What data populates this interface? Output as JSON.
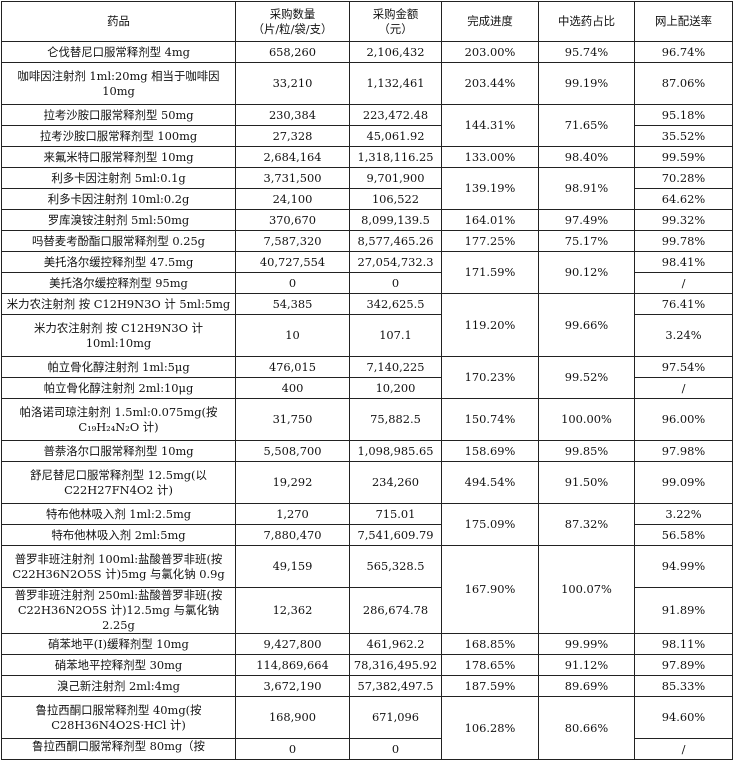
{
  "headers": {
    "drug": "药品",
    "qty": "采购数量",
    "qty_unit": "（片/粒/袋/支）",
    "amt": "采购金额",
    "amt_unit": "（元）",
    "progress": "完成进度",
    "share": "中选药占比",
    "online": "网上配送率"
  },
  "rows": [
    {
      "name": "仑伐替尼口服常释剂型 4mg",
      "qty": "658,260",
      "amt": "2,106,432",
      "progress": "203.00%",
      "share": "95.74%",
      "online": "96.74%"
    },
    {
      "name": "咖啡因注射剂 1ml:20mg 相当于咖啡因 10mg",
      "qty": "33,210",
      "amt": "1,132,461",
      "progress": "203.44%",
      "share": "99.19%",
      "online": "87.06%"
    },
    {
      "name": "拉考沙胺口服常释剂型 50mg",
      "qty": "230,384",
      "amt": "223,472.48",
      "progress": "144.31%",
      "share": "71.65%",
      "online": "95.18%"
    },
    {
      "name": "拉考沙胺口服常释剂型 100mg",
      "qty": "27,328",
      "amt": "45,061.92",
      "online": "35.52%"
    },
    {
      "name": "来氟米特口服常释剂型 10mg",
      "qty": "2,684,164",
      "amt": "1,318,116.25",
      "progress": "133.00%",
      "share": "98.40%",
      "online": "99.59%"
    },
    {
      "name": "利多卡因注射剂 5ml:0.1g",
      "qty": "3,731,500",
      "amt": "9,701,900",
      "progress": "139.19%",
      "share": "98.91%",
      "online": "70.28%"
    },
    {
      "name": "利多卡因注射剂 10ml:0.2g",
      "qty": "24,100",
      "amt": "106,522",
      "online": "64.62%"
    },
    {
      "name": "罗库溴铵注射剂 5ml:50mg",
      "qty": "370,670",
      "amt": "8,099,139.5",
      "progress": "164.01%",
      "share": "97.49%",
      "online": "99.32%"
    },
    {
      "name": "吗替麦考酚酯口服常释剂型 0.25g",
      "qty": "7,587,320",
      "amt": "8,577,465.26",
      "progress": "177.25%",
      "share": "75.17%",
      "online": "99.78%"
    },
    {
      "name": "美托洛尔缓控释剂型 47.5mg",
      "qty": "40,727,554",
      "amt": "27,054,732.3",
      "progress": "171.59%",
      "share": "90.12%",
      "online": "98.41%"
    },
    {
      "name": "美托洛尔缓控释剂型 95mg",
      "qty": "0",
      "amt": "0",
      "online": "/"
    },
    {
      "name": "米力农注射剂 按 C12H9N3O 计 5ml:5mg",
      "qty": "54,385",
      "amt": "342,625.5",
      "progress": "119.20%",
      "share": "99.66%",
      "online": "76.41%"
    },
    {
      "name": "米力农注射剂 按 C12H9N3O 计 10ml:10mg",
      "qty": "10",
      "amt": "107.1",
      "online": "3.24%"
    },
    {
      "name": "帕立骨化醇注射剂 1ml:5μg",
      "qty": "476,015",
      "amt": "7,140,225",
      "progress": "170.23%",
      "share": "99.52%",
      "online": "97.54%"
    },
    {
      "name": "帕立骨化醇注射剂 2ml:10μg",
      "qty": "400",
      "amt": "10,200",
      "online": "/"
    },
    {
      "name": "帕洛诺司琼注射剂 1.5ml:0.075mg(按 C₁₉H₂₄N₂O 计)",
      "qty": "31,750",
      "amt": "75,882.5",
      "progress": "150.74%",
      "share": "100.00%",
      "online": "96.00%"
    },
    {
      "name": "普萘洛尔口服常释剂型 10mg",
      "qty": "5,508,700",
      "amt": "1,098,985.65",
      "progress": "158.69%",
      "share": "99.85%",
      "online": "97.98%"
    },
    {
      "name": "舒尼替尼口服常释剂型 12.5mg(以 C22H27FN4O2 计)",
      "qty": "19,292",
      "amt": "234,260",
      "progress": "494.54%",
      "share": "91.50%",
      "online": "99.09%"
    },
    {
      "name": "特布他林吸入剂 1ml:2.5mg",
      "qty": "1,270",
      "amt": "715.01",
      "progress": "175.09%",
      "share": "87.32%",
      "online": "3.22%"
    },
    {
      "name": "特布他林吸入剂 2ml:5mg",
      "qty": "7,880,470",
      "amt": "7,541,609.79",
      "online": "56.58%"
    },
    {
      "name": "普罗非班注射剂 100ml:盐酸普罗非班(按 C22H36N2O5S 计)5mg 与氯化钠 0.9g",
      "qty": "49,159",
      "amt": "565,328.5",
      "progress": "167.90%",
      "share": "100.07%",
      "online": "94.99%"
    },
    {
      "name": "普罗非班注射剂 250ml:盐酸普罗非班(按 C22H36N2O5S 计)12.5mg 与氯化钠 2.25g",
      "qty": "12,362",
      "amt": "286,674.78",
      "online": "91.89%"
    },
    {
      "name": "硝苯地平(I)缓释剂型 10mg",
      "qty": "9,427,800",
      "amt": "461,962.2",
      "progress": "168.85%",
      "share": "99.99%",
      "online": "98.11%"
    },
    {
      "name": "硝苯地平控释剂型 30mg",
      "qty": "114,869,664",
      "amt": "78,316,495.92",
      "progress": "178.65%",
      "share": "91.12%",
      "online": "97.89%"
    },
    {
      "name": "溴己新注射剂 2ml:4mg",
      "qty": "3,672,190",
      "amt": "57,382,497.5",
      "progress": "187.59%",
      "share": "89.69%",
      "online": "85.33%"
    },
    {
      "name": "鲁拉西酮口服常释剂型 40mg(按 C28H36N4O2S·HCl 计)",
      "qty": "168,900",
      "amt": "671,096",
      "progress": "106.28%",
      "share": "80.66%",
      "online": "94.60%"
    },
    {
      "name": "鲁拉西酮口服常释剂型 80mg（按",
      "qty": "0",
      "amt": "0",
      "online": "/"
    }
  ]
}
